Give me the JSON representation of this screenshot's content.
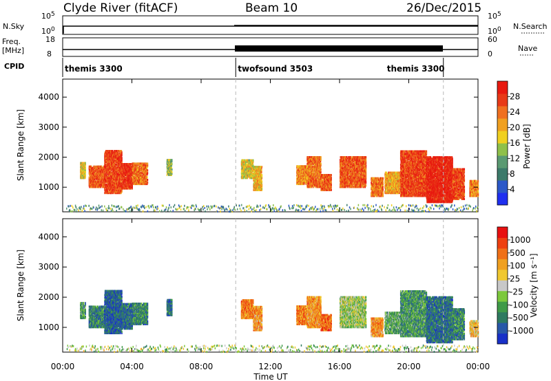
{
  "header": {
    "station": "Clyde River (fitACF)",
    "beam": "Beam 10",
    "date": "26/Dec/2015"
  },
  "top_panel_labels": {
    "nsky": "N.Sky",
    "nsearch": "N.Search",
    "freq_line1": "Freq.",
    "freq_line2": "[MHz]",
    "nave": "Nave",
    "cpid": "CPID",
    "nsky_ticks": [
      "10^5",
      "10^0"
    ],
    "nsearch_ticks": [
      "10^5",
      "10^0"
    ],
    "freq_ticks": [
      "18",
      "8"
    ],
    "nave_ticks": [
      "60",
      "0"
    ]
  },
  "cpid_segments": [
    {
      "label": "themis 3300",
      "start_hour": 0,
      "end_hour": 10
    },
    {
      "label": "twofsound 3503",
      "start_hour": 10,
      "end_hour": 22
    },
    {
      "label": "themis 3300",
      "start_hour": 22,
      "end_hour": 24
    }
  ],
  "chart_data": [
    {
      "type": "heatmap",
      "name": "power-panel",
      "ylabel": "Slant Range [km]",
      "xlabel": "Time UT",
      "xlim_hours": [
        0,
        24
      ],
      "ylim_km": [
        180,
        4600
      ],
      "yticks": [
        "1000",
        "2000",
        "3000",
        "4000"
      ],
      "xticks": [
        "00:00",
        "04:00",
        "08:00",
        "12:00",
        "16:00",
        "20:00",
        "00:00"
      ],
      "xtick_hours": [
        0,
        4,
        8,
        12,
        16,
        20,
        24
      ],
      "mode_boundaries_hours": [
        10,
        22
      ],
      "colorbar": {
        "label": "Power [dB]",
        "ticks": [
          "4",
          "8",
          "12",
          "16",
          "20",
          "24",
          "28"
        ],
        "tick_values": [
          4,
          8,
          12,
          16,
          20,
          24,
          28
        ],
        "range": [
          0,
          32
        ],
        "colors": [
          "#1f2ff0",
          "#2b58c8",
          "#3c7a6a",
          "#5a9a72",
          "#8fc04a",
          "#f0d020",
          "#f0a020",
          "#f07020",
          "#e83a18",
          "#e81a10"
        ]
      },
      "echo_regions": [
        {
          "start_hour": 1.0,
          "end_hour": 1.3,
          "min_km": 1300,
          "max_km": 1800,
          "level": 0.55
        },
        {
          "start_hour": 1.5,
          "end_hour": 2.4,
          "min_km": 1000,
          "max_km": 1700,
          "level": 0.8
        },
        {
          "start_hour": 2.4,
          "end_hour": 3.4,
          "min_km": 800,
          "max_km": 2200,
          "level": 0.85
        },
        {
          "start_hour": 3.4,
          "end_hour": 4.0,
          "min_km": 950,
          "max_km": 1800,
          "level": 0.9
        },
        {
          "start_hour": 4.0,
          "end_hour": 4.9,
          "min_km": 1100,
          "max_km": 1800,
          "level": 0.75
        },
        {
          "start_hour": 6.0,
          "end_hour": 6.3,
          "min_km": 1400,
          "max_km": 1900,
          "level": 0.45
        },
        {
          "start_hour": 10.3,
          "end_hour": 11.0,
          "min_km": 1300,
          "max_km": 1900,
          "level": 0.55
        },
        {
          "start_hour": 11.0,
          "end_hour": 11.5,
          "min_km": 900,
          "max_km": 1700,
          "level": 0.6
        },
        {
          "start_hour": 13.5,
          "end_hour": 14.1,
          "min_km": 1100,
          "max_km": 1700,
          "level": 0.7
        },
        {
          "start_hour": 14.1,
          "end_hour": 14.9,
          "min_km": 1000,
          "max_km": 2000,
          "level": 0.75
        },
        {
          "start_hour": 14.9,
          "end_hour": 15.5,
          "min_km": 900,
          "max_km": 1400,
          "level": 0.8
        },
        {
          "start_hour": 16.0,
          "end_hour": 17.5,
          "min_km": 1000,
          "max_km": 2000,
          "level": 0.8
        },
        {
          "start_hour": 17.8,
          "end_hour": 18.5,
          "min_km": 700,
          "max_km": 1300,
          "level": 0.75
        },
        {
          "start_hour": 18.6,
          "end_hour": 19.5,
          "min_km": 800,
          "max_km": 1500,
          "level": 0.65
        },
        {
          "start_hour": 19.5,
          "end_hour": 21.0,
          "min_km": 700,
          "max_km": 2200,
          "level": 0.85
        },
        {
          "start_hour": 21.0,
          "end_hour": 22.5,
          "min_km": 500,
          "max_km": 2000,
          "level": 0.95
        },
        {
          "start_hour": 22.5,
          "end_hour": 23.2,
          "min_km": 600,
          "max_km": 1600,
          "level": 0.85
        },
        {
          "start_hour": 23.5,
          "end_hour": 24.0,
          "min_km": 700,
          "max_km": 1200,
          "level": 0.7
        }
      ]
    },
    {
      "type": "heatmap",
      "name": "velocity-panel",
      "ylabel": "Slant Range [km]",
      "xlabel": "Time UT",
      "xlim_hours": [
        0,
        24
      ],
      "ylim_km": [
        180,
        4600
      ],
      "yticks": [
        "1000",
        "2000",
        "3000",
        "4000"
      ],
      "xticks": [
        "00:00",
        "04:00",
        "08:00",
        "12:00",
        "16:00",
        "20:00",
        "00:00"
      ],
      "xtick_hours": [
        0,
        4,
        8,
        12,
        16,
        20,
        24
      ],
      "mode_boundaries_hours": [
        10,
        22
      ],
      "colorbar": {
        "label": "Velocity [m s⁻¹]",
        "ticks": [
          "1000",
          "500",
          "100",
          "25",
          "-25",
          "-100",
          "-500",
          "-1000"
        ],
        "colors": [
          "#1830c8",
          "#2858a8",
          "#2e7a60",
          "#3f9a48",
          "#7cc83c",
          "#c8c8c8",
          "#f0c830",
          "#f0a020",
          "#f07018",
          "#ee4010",
          "#e81010"
        ]
      },
      "echo_regions": [
        {
          "start_hour": 1.0,
          "end_hour": 1.3,
          "min_km": 1300,
          "max_km": 1800,
          "level": 0.3
        },
        {
          "start_hour": 1.5,
          "end_hour": 2.4,
          "min_km": 1000,
          "max_km": 1700,
          "level": 0.25
        },
        {
          "start_hour": 2.4,
          "end_hour": 3.4,
          "min_km": 800,
          "max_km": 2200,
          "level": 0.15
        },
        {
          "start_hour": 3.4,
          "end_hour": 4.0,
          "min_km": 950,
          "max_km": 1800,
          "level": 0.2
        },
        {
          "start_hour": 4.0,
          "end_hour": 4.9,
          "min_km": 1100,
          "max_km": 1800,
          "level": 0.25
        },
        {
          "start_hour": 6.0,
          "end_hour": 6.3,
          "min_km": 1400,
          "max_km": 1900,
          "level": 0.2
        },
        {
          "start_hour": 10.3,
          "end_hour": 11.0,
          "min_km": 1300,
          "max_km": 1900,
          "level": 0.75
        },
        {
          "start_hour": 11.0,
          "end_hour": 11.5,
          "min_km": 900,
          "max_km": 1700,
          "level": 0.7
        },
        {
          "start_hour": 13.5,
          "end_hour": 14.1,
          "min_km": 1100,
          "max_km": 1700,
          "level": 0.75
        },
        {
          "start_hour": 14.1,
          "end_hour": 14.9,
          "min_km": 1000,
          "max_km": 2000,
          "level": 0.7
        },
        {
          "start_hour": 14.9,
          "end_hour": 15.5,
          "min_km": 900,
          "max_km": 1400,
          "level": 0.8
        },
        {
          "start_hour": 16.0,
          "end_hour": 17.5,
          "min_km": 1000,
          "max_km": 2000,
          "level": 0.45
        },
        {
          "start_hour": 17.8,
          "end_hour": 18.5,
          "min_km": 700,
          "max_km": 1300,
          "level": 0.7
        },
        {
          "start_hour": 18.6,
          "end_hour": 19.5,
          "min_km": 800,
          "max_km": 1500,
          "level": 0.35
        },
        {
          "start_hour": 19.5,
          "end_hour": 21.0,
          "min_km": 700,
          "max_km": 2200,
          "level": 0.3
        },
        {
          "start_hour": 21.0,
          "end_hour": 22.5,
          "min_km": 500,
          "max_km": 2000,
          "level": 0.2
        },
        {
          "start_hour": 22.5,
          "end_hour": 23.2,
          "min_km": 600,
          "max_km": 1600,
          "level": 0.25
        },
        {
          "start_hour": 23.5,
          "end_hour": 24.0,
          "min_km": 700,
          "max_km": 1200,
          "level": 0.6
        }
      ]
    }
  ]
}
